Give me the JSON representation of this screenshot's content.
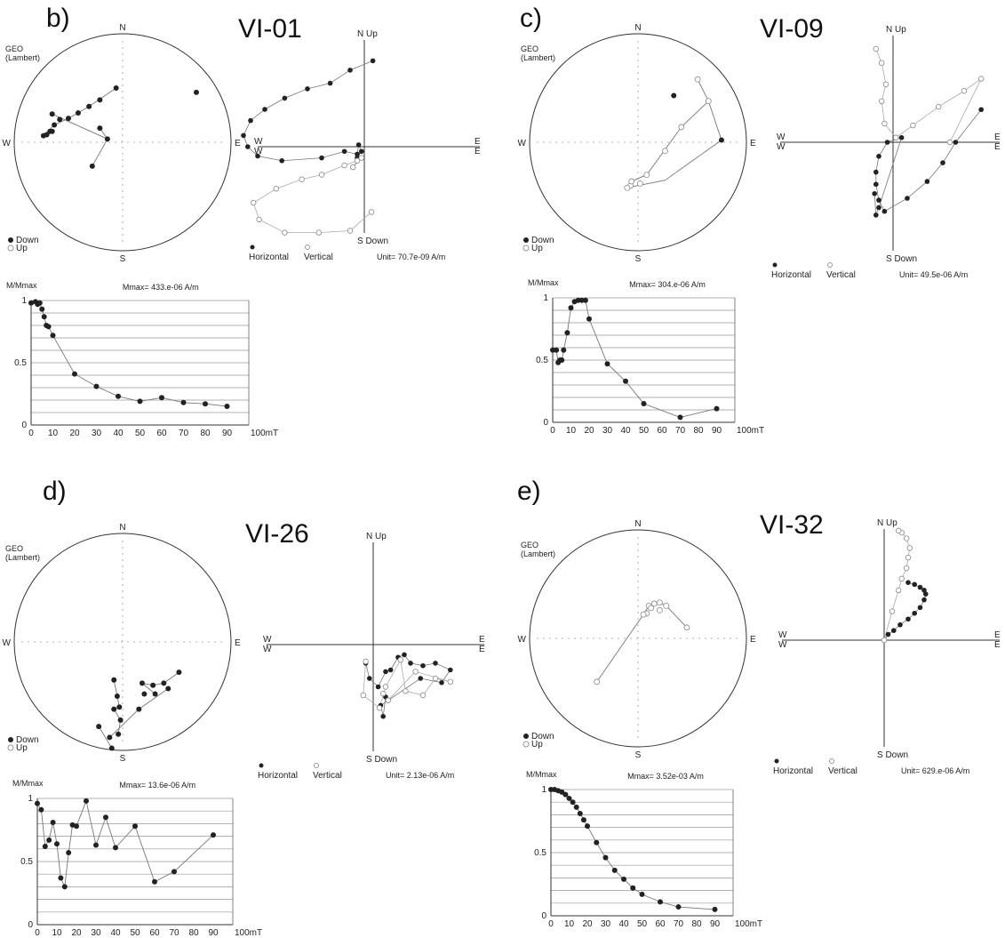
{
  "colors": {
    "ink": "#222222",
    "line": "#777777",
    "grid": "#999999",
    "open": "#ffffff"
  },
  "chart_data": [
    {
      "panel": "b)",
      "site": "VI-01",
      "stereonet": {
        "title": "GEO\n(Lambert)",
        "N": "N",
        "S": "S",
        "E": "E",
        "W": "W",
        "legend_down": "Down",
        "legend_up": "Up",
        "points_down": [
          [
            -0.73,
            0.06
          ],
          [
            -0.65,
            0.1
          ],
          [
            -0.63,
            0.16
          ],
          [
            -0.58,
            0.21
          ],
          [
            -0.5,
            0.22
          ],
          [
            -0.41,
            0.27
          ],
          [
            -0.31,
            0.33
          ],
          [
            -0.21,
            0.39
          ],
          [
            -0.06,
            0.5
          ],
          [
            -0.21,
            0.13
          ],
          [
            -0.14,
            0.03
          ],
          [
            -0.28,
            -0.22
          ],
          [
            -0.65,
            0.26
          ],
          [
            -0.67,
            0.1
          ],
          [
            -0.7,
            0.07
          ],
          [
            0.68,
            0.46
          ]
        ],
        "lines": [
          [
            [
              -0.73,
              0.06
            ],
            [
              -0.63,
              0.16
            ],
            [
              -0.5,
              0.22
            ],
            [
              -0.31,
              0.33
            ],
            [
              -0.06,
              0.5
            ]
          ],
          [
            [
              -0.21,
              0.13
            ],
            [
              -0.14,
              0.03
            ],
            [
              -0.28,
              -0.22
            ]
          ],
          [
            [
              -0.65,
              0.26
            ],
            [
              -0.14,
              0.03
            ]
          ]
        ],
        "points_up": []
      },
      "zijderveld": {
        "N": "N Up",
        "S": "S Down",
        "W": "W",
        "W2": "W",
        "E": "E",
        "E2": "E",
        "legend_horizontal": "Horizontal",
        "legend_vertical": "Vertical",
        "unit": "Unit= 70.7e-09 A/m",
        "horizontal": [
          [
            0.06,
            0.92
          ],
          [
            -0.1,
            0.82
          ],
          [
            -0.24,
            0.68
          ],
          [
            -0.4,
            0.62
          ],
          [
            -0.56,
            0.52
          ],
          [
            -0.7,
            0.4
          ],
          [
            -0.8,
            0.28
          ],
          [
            -0.85,
            0.12
          ],
          [
            -0.82,
            0.0
          ],
          [
            -0.75,
            -0.1
          ],
          [
            -0.58,
            -0.15
          ],
          [
            -0.3,
            -0.12
          ],
          [
            -0.14,
            -0.05
          ],
          [
            -0.05,
            -0.08
          ],
          [
            -0.04,
            0.02
          ],
          [
            -0.02,
            -0.05
          ],
          [
            -0.05,
            -0.12
          ]
        ],
        "vertical": [
          [
            0.05,
            -0.7
          ],
          [
            -0.1,
            -0.9
          ],
          [
            -0.32,
            -0.92
          ],
          [
            -0.56,
            -0.92
          ],
          [
            -0.74,
            -0.78
          ],
          [
            -0.78,
            -0.6
          ],
          [
            -0.62,
            -0.45
          ],
          [
            -0.44,
            -0.35
          ],
          [
            -0.3,
            -0.3
          ],
          [
            -0.14,
            -0.2
          ],
          [
            -0.05,
            -0.15
          ],
          [
            -0.08,
            -0.22
          ],
          [
            -0.02,
            -0.12
          ]
        ]
      },
      "demag": {
        "type": "line",
        "ylabel": "M/Mmax",
        "mmax": "Mmax= 433.e-06  A/m",
        "xlabel": "100mT",
        "xticks": [
          "0",
          "10",
          "20",
          "30",
          "40",
          "50",
          "60",
          "70",
          "80",
          "90"
        ],
        "yticks": [
          "0",
          "0.5",
          "1"
        ],
        "x": [
          0,
          2,
          3,
          4,
          5,
          6,
          7,
          8,
          10,
          20,
          30,
          40,
          50,
          60,
          70,
          80,
          90
        ],
        "y": [
          0.98,
          0.99,
          0.97,
          0.98,
          0.93,
          0.87,
          0.8,
          0.79,
          0.72,
          0.41,
          0.31,
          0.23,
          0.19,
          0.22,
          0.18,
          0.17,
          0.15
        ]
      }
    },
    {
      "panel": "c)",
      "site": "VI-09",
      "stereonet": {
        "title": "GEO\n(Lambert)",
        "N": "N",
        "S": "S",
        "E": "E",
        "W": "W",
        "legend_down": "Down",
        "legend_up": "Up",
        "points_down": [
          [
            0.33,
            0.43
          ],
          [
            0.77,
            0.02
          ]
        ],
        "points_up": [
          [
            0.55,
            0.58
          ],
          [
            0.65,
            0.38
          ],
          [
            0.25,
            -0.08
          ],
          [
            0.08,
            -0.3
          ],
          [
            0.02,
            -0.38
          ],
          [
            -0.07,
            -0.4
          ],
          [
            -0.1,
            -0.42
          ],
          [
            -0.06,
            -0.36
          ],
          [
            0.4,
            0.14
          ]
        ],
        "lines": [
          [
            [
              0.55,
              0.58
            ],
            [
              0.65,
              0.38
            ],
            [
              0.77,
              0.02
            ],
            [
              0.25,
              -0.35
            ],
            [
              -0.1,
              -0.42
            ]
          ],
          [
            [
              0.65,
              0.38
            ],
            [
              0.4,
              0.14
            ],
            [
              0.08,
              -0.3
            ],
            [
              -0.06,
              -0.36
            ]
          ]
        ]
      },
      "zijderveld": {
        "N": "N Up",
        "S": "S Down",
        "W": "W",
        "W2": "W",
        "E": "E",
        "E2": "E",
        "legend_horizontal": "Horizontal",
        "legend_vertical": "Vertical",
        "unit": "Unit= 49.5e-06 A/m",
        "horizontal": [
          [
            0.62,
            0.35
          ],
          [
            0.44,
            0.0
          ],
          [
            0.35,
            -0.22
          ],
          [
            0.24,
            -0.42
          ],
          [
            0.1,
            -0.6
          ],
          [
            -0.06,
            -0.74
          ],
          [
            -0.1,
            -0.62
          ],
          [
            -0.12,
            -0.45
          ],
          [
            -0.12,
            -0.32
          ],
          [
            -0.1,
            -0.15
          ],
          [
            -0.04,
            0.0
          ],
          [
            0.06,
            0.05
          ],
          [
            -0.1,
            -0.7
          ],
          [
            -0.12,
            -0.78
          ],
          [
            -0.13,
            -0.55
          ]
        ],
        "vertical": [
          [
            -0.12,
            1.0
          ],
          [
            -0.08,
            0.85
          ],
          [
            -0.05,
            0.62
          ],
          [
            -0.08,
            0.44
          ],
          [
            -0.06,
            0.2
          ],
          [
            0.02,
            0.05
          ],
          [
            0.14,
            0.18
          ],
          [
            0.32,
            0.38
          ],
          [
            0.5,
            0.55
          ],
          [
            0.62,
            0.68
          ],
          [
            0.4,
            0.0
          ]
        ]
      },
      "demag": {
        "type": "line",
        "ylabel": "M/Mmax",
        "mmax": "Mmax= 304.e-06  A/m",
        "xlabel": "100mT",
        "xticks": [
          "0",
          "10",
          "20",
          "30",
          "40",
          "50",
          "60",
          "70",
          "80",
          "90"
        ],
        "yticks": [
          "0",
          "0.5",
          "1"
        ],
        "x": [
          0,
          2,
          3,
          4,
          5,
          6,
          8,
          10,
          12,
          14,
          16,
          18,
          20,
          30,
          40,
          50,
          70,
          90
        ],
        "y": [
          0.58,
          0.58,
          0.48,
          0.5,
          0.5,
          0.58,
          0.72,
          0.92,
          0.97,
          0.98,
          0.98,
          0.98,
          0.83,
          0.47,
          0.33,
          0.15,
          0.04,
          0.11
        ]
      }
    },
    {
      "panel": "d)",
      "site": "VI-26",
      "stereonet": {
        "title": "GEO\n(Lambert)",
        "N": "N",
        "S": "S",
        "E": "E",
        "W": "W",
        "legend_down": "Down",
        "legend_up": "Up",
        "points_down": [
          [
            0.52,
            -0.28
          ],
          [
            0.38,
            -0.38
          ],
          [
            0.42,
            -0.43
          ],
          [
            0.28,
            -0.4
          ],
          [
            0.18,
            -0.38
          ],
          [
            0.3,
            -0.48
          ],
          [
            -0.08,
            -0.35
          ],
          [
            -0.05,
            -0.5
          ],
          [
            -0.03,
            -0.6
          ],
          [
            -0.08,
            -0.62
          ],
          [
            -0.02,
            -0.72
          ],
          [
            -0.04,
            -0.85
          ],
          [
            -0.22,
            -0.78
          ],
          [
            -0.1,
            -0.98
          ],
          [
            0.2,
            -0.48
          ],
          [
            0.15,
            -0.62
          ],
          [
            -0.12,
            -0.88
          ]
        ],
        "points_up": [],
        "lines": [
          [
            [
              0.52,
              -0.28
            ],
            [
              0.38,
              -0.38
            ],
            [
              0.28,
              -0.4
            ],
            [
              0.18,
              -0.38
            ],
            [
              0.3,
              -0.48
            ]
          ],
          [
            [
              -0.08,
              -0.35
            ],
            [
              -0.05,
              -0.5
            ],
            [
              -0.03,
              -0.6
            ],
            [
              -0.08,
              -0.62
            ],
            [
              -0.02,
              -0.72
            ],
            [
              -0.04,
              -0.85
            ]
          ],
          [
            [
              -0.22,
              -0.78
            ],
            [
              -0.1,
              -0.98
            ]
          ],
          [
            [
              -0.12,
              -0.88
            ],
            [
              0.15,
              -0.62
            ],
            [
              0.42,
              -0.43
            ]
          ]
        ]
      },
      "zijderveld": {
        "N": "N Up",
        "S": "S Down",
        "W": "W",
        "W2": "W",
        "E": "E",
        "E2": "E",
        "legend_horizontal": "Horizontal",
        "legend_vertical": "Vertical",
        "unit": "Unit= 2.13e-06 A/m",
        "horizontal": [
          [
            -0.06,
            -0.22
          ],
          [
            -0.03,
            -0.4
          ],
          [
            0.04,
            -0.5
          ],
          [
            0.1,
            -0.32
          ],
          [
            0.14,
            -0.3
          ],
          [
            0.2,
            -0.15
          ],
          [
            0.25,
            -0.12
          ],
          [
            0.3,
            -0.22
          ],
          [
            0.4,
            -0.25
          ],
          [
            0.5,
            -0.22
          ],
          [
            0.62,
            -0.3
          ],
          [
            0.55,
            -0.45
          ],
          [
            0.38,
            -0.4
          ],
          [
            0.06,
            -0.72
          ],
          [
            0.08,
            -0.85
          ],
          [
            0.1,
            -0.62
          ]
        ],
        "vertical": [
          [
            -0.06,
            -0.2
          ],
          [
            -0.08,
            -0.6
          ],
          [
            0.05,
            -0.75
          ],
          [
            0.1,
            -0.5
          ],
          [
            0.22,
            -0.18
          ],
          [
            0.26,
            -0.55
          ],
          [
            0.4,
            -0.6
          ],
          [
            0.5,
            -0.4
          ],
          [
            0.62,
            -0.44
          ],
          [
            0.34,
            -0.32
          ],
          [
            0.12,
            -0.66
          ],
          [
            0.08,
            -0.58
          ]
        ]
      },
      "demag": {
        "type": "line",
        "ylabel": "M/Mmax",
        "mmax": "Mmax= 13.6e-06  A/m",
        "xlabel": "100mT",
        "xticks": [
          "0",
          "10",
          "20",
          "30",
          "40",
          "50",
          "60",
          "70",
          "80",
          "90"
        ],
        "yticks": [
          "0",
          "0.5",
          "1"
        ],
        "x": [
          0,
          2,
          4,
          6,
          8,
          10,
          12,
          14,
          16,
          18,
          20,
          25,
          30,
          35,
          40,
          50,
          60,
          70,
          90
        ],
        "y": [
          0.96,
          0.91,
          0.62,
          0.67,
          0.81,
          0.64,
          0.37,
          0.3,
          0.57,
          0.79,
          0.78,
          0.98,
          0.63,
          0.85,
          0.61,
          0.78,
          0.34,
          0.42,
          0.71
        ]
      }
    },
    {
      "panel": "e)",
      "site": "VI-32",
      "stereonet": {
        "title": "GEO\n(Lambert)",
        "N": "N",
        "S": "S",
        "E": "E",
        "W": "W",
        "legend_down": "Down",
        "legend_up": "Up",
        "points_down": [],
        "points_up": [
          [
            0.1,
            0.3
          ],
          [
            0.15,
            0.32
          ],
          [
            0.2,
            0.33
          ],
          [
            0.26,
            0.3
          ],
          [
            0.2,
            0.26
          ],
          [
            0.12,
            0.28
          ],
          [
            0.08,
            0.23
          ],
          [
            0.05,
            0.22
          ],
          [
            0.45,
            0.1
          ],
          [
            -0.38,
            -0.4
          ]
        ],
        "lines": [
          [
            [
              -0.38,
              -0.4
            ],
            [
              0.05,
              0.22
            ],
            [
              0.1,
              0.3
            ],
            [
              0.2,
              0.33
            ],
            [
              0.26,
              0.3
            ],
            [
              0.45,
              0.1
            ]
          ]
        ]
      },
      "zijderveld": {
        "N": "N Up",
        "S": "S Down",
        "W": "W",
        "W2": "W",
        "E": "E",
        "E2": "E",
        "legend_horizontal": "Horizontal",
        "legend_vertical": "Vertical",
        "unit": "Unit= 629.e-06 A/m",
        "horizontal": [
          [
            0.0,
            0.0
          ],
          [
            0.05,
            0.06
          ],
          [
            0.12,
            0.1
          ],
          [
            0.2,
            0.16
          ],
          [
            0.3,
            0.22
          ],
          [
            0.38,
            0.28
          ],
          [
            0.45,
            0.34
          ],
          [
            0.5,
            0.42
          ],
          [
            0.52,
            0.48
          ],
          [
            0.5,
            0.52
          ],
          [
            0.45,
            0.55
          ],
          [
            0.38,
            0.58
          ],
          [
            0.3,
            0.6
          ]
        ],
        "vertical": [
          [
            0.0,
            0.0
          ],
          [
            0.1,
            0.3
          ],
          [
            0.18,
            0.52
          ],
          [
            0.22,
            0.64
          ],
          [
            0.28,
            0.75
          ],
          [
            0.3,
            0.86
          ],
          [
            0.32,
            0.96
          ],
          [
            0.28,
            1.06
          ],
          [
            0.22,
            1.12
          ],
          [
            0.18,
            1.14
          ]
        ]
      },
      "demag": {
        "type": "line",
        "ylabel": "M/Mmax",
        "mmax": "Mmax= 3.52e-03  A/m",
        "xlabel": "100mT",
        "xticks": [
          "0",
          "10",
          "20",
          "30",
          "40",
          "50",
          "60",
          "70",
          "80",
          "90"
        ],
        "yticks": [
          "0",
          "0.5",
          "1"
        ],
        "x": [
          0,
          2,
          4,
          6,
          8,
          10,
          12,
          14,
          16,
          18,
          20,
          25,
          30,
          35,
          40,
          45,
          50,
          60,
          70,
          90
        ],
        "y": [
          1.0,
          1.0,
          0.99,
          0.98,
          0.96,
          0.93,
          0.9,
          0.86,
          0.81,
          0.76,
          0.71,
          0.58,
          0.46,
          0.36,
          0.29,
          0.22,
          0.17,
          0.11,
          0.07,
          0.05
        ]
      }
    }
  ]
}
